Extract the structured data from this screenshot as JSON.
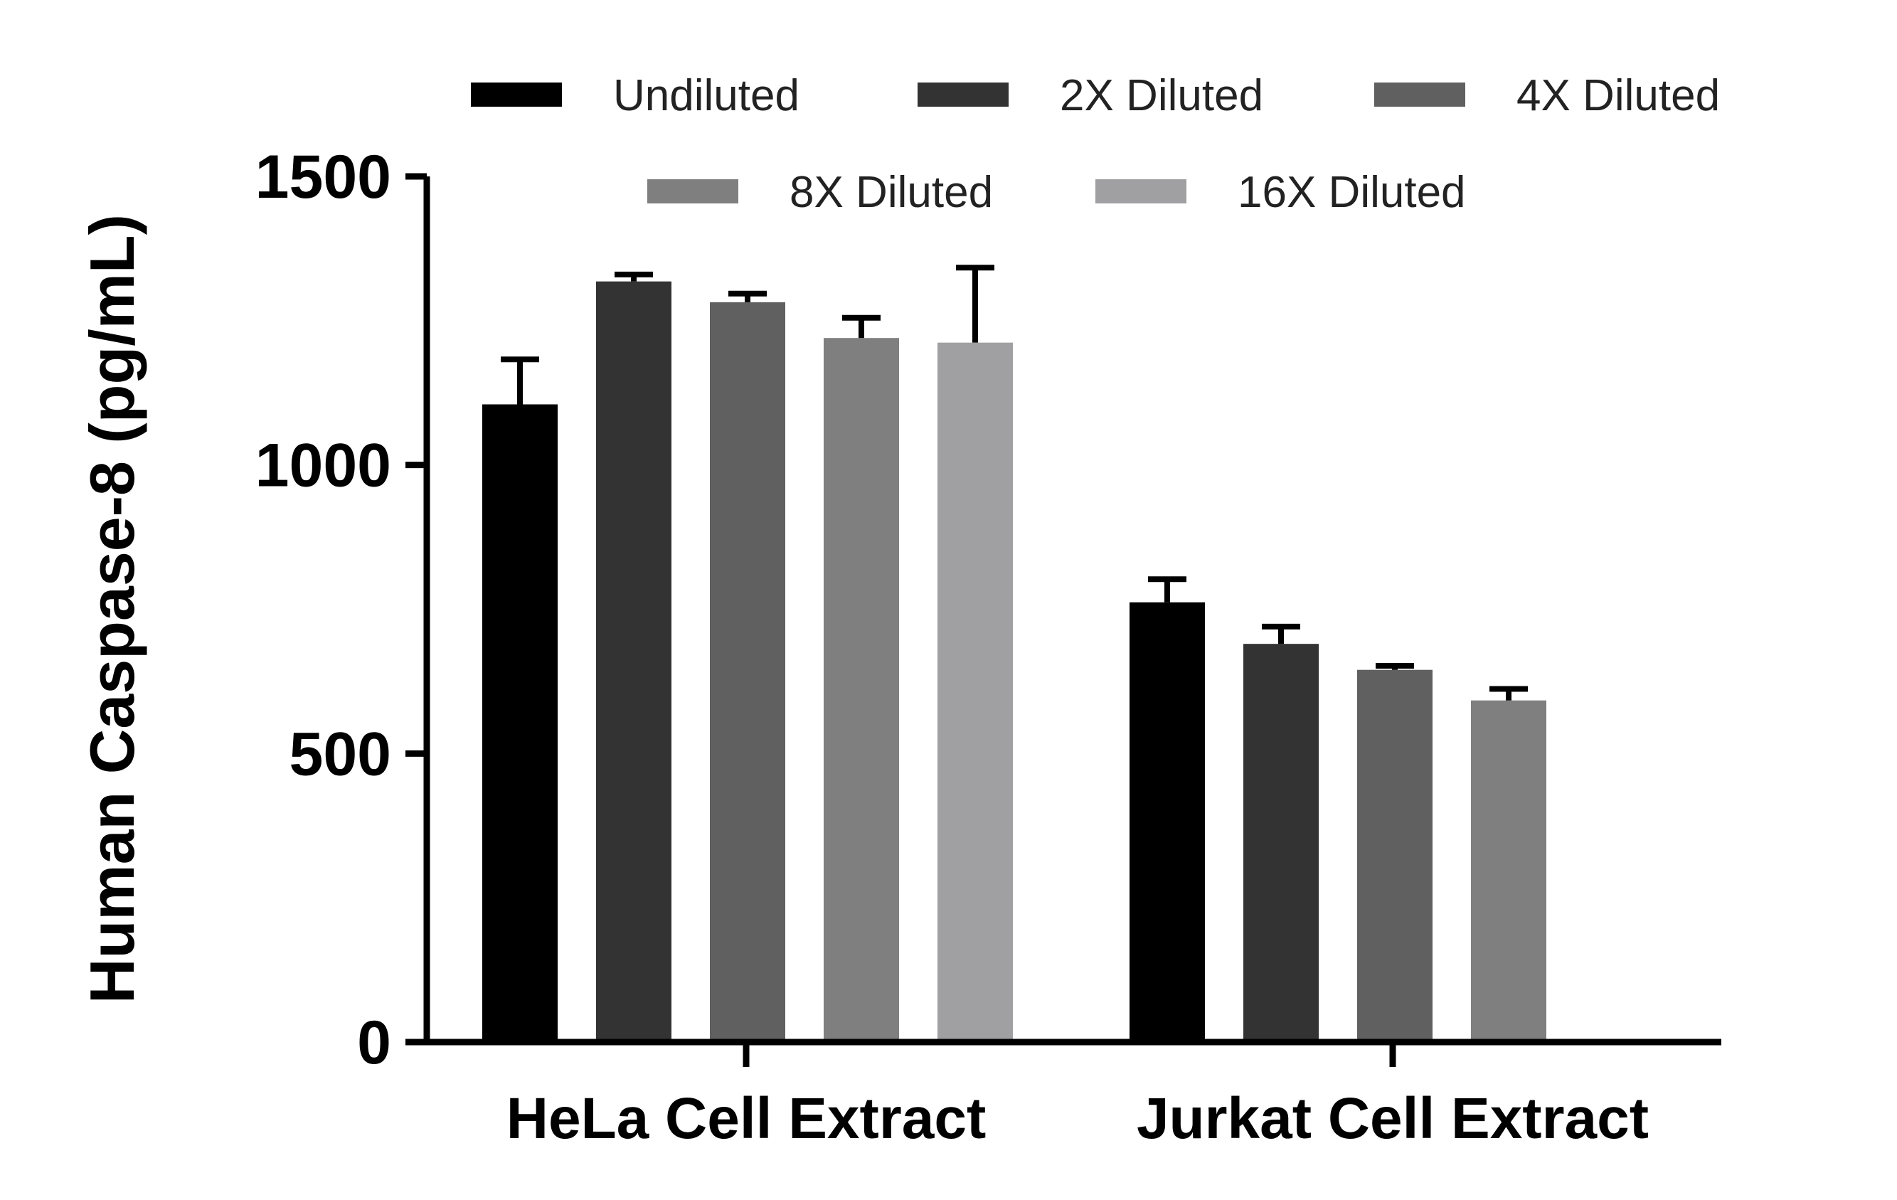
{
  "chart_data": {
    "type": "bar",
    "title": "",
    "ylabel": "Human Caspase-8 (pg/mL)",
    "xlabel": "",
    "ylim": [
      0,
      1500
    ],
    "yticks": [
      0,
      500,
      1000,
      1500
    ],
    "ytick_labels": [
      "0",
      "500",
      "1000",
      "1500"
    ],
    "categories": [
      "HeLa Cell Extract",
      "Jurkat Cell Extract"
    ],
    "legend_position": "top",
    "series": [
      {
        "name": "Undiluted",
        "color": "#000000",
        "values": [
          1105,
          762
        ],
        "errors": [
          78,
          40
        ]
      },
      {
        "name": "2X Diluted",
        "color": "#333333",
        "values": [
          1318,
          690
        ],
        "errors": [
          12,
          30
        ]
      },
      {
        "name": "4X Diluted",
        "color": "#606060",
        "values": [
          1282,
          645
        ],
        "errors": [
          15,
          7
        ]
      },
      {
        "name": "8X Diluted",
        "color": "#7f7f7f",
        "values": [
          1220,
          592
        ],
        "errors": [
          35,
          20
        ]
      },
      {
        "name": "16X Diluted",
        "color": "#a0a0a2",
        "values": [
          1212,
          null
        ],
        "errors": [
          130,
          null
        ]
      }
    ]
  }
}
